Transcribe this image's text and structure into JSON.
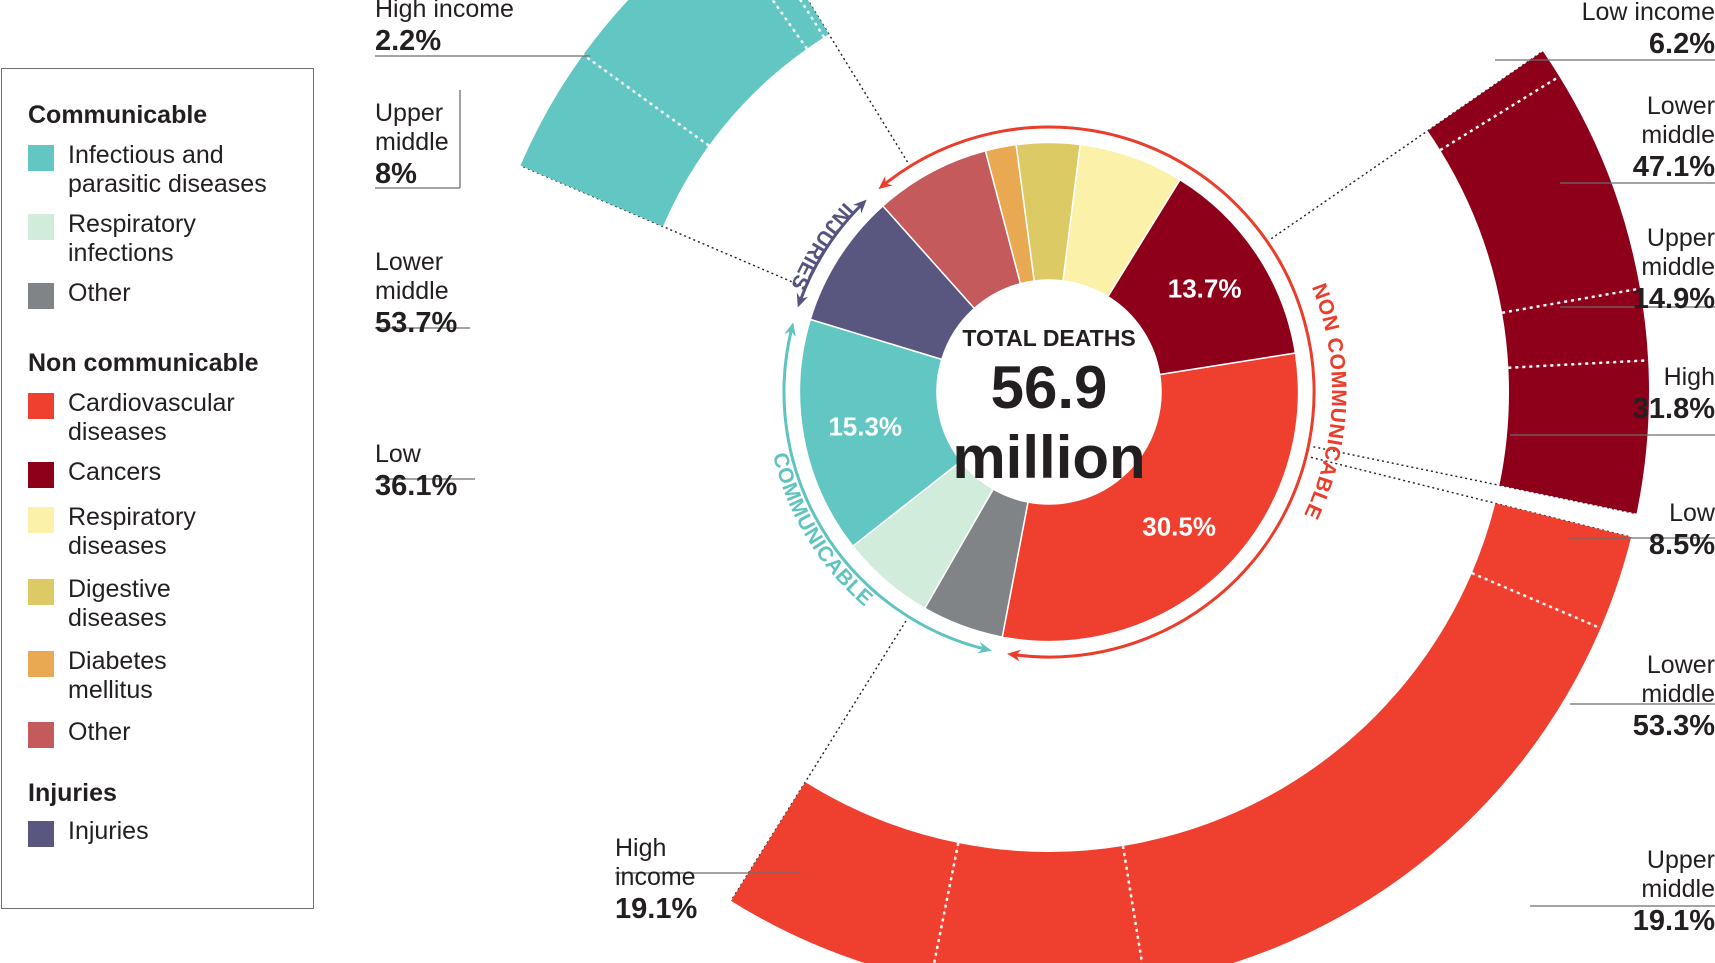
{
  "colors": {
    "infectious": "#62c6c3",
    "respiratory_infections": "#d2ecdc",
    "communicable_other": "#808486",
    "cardiovascular": "#ef402f",
    "cancers": "#8e001a",
    "respiratory_diseases": "#fcf1a8",
    "digestive": "#dccb64",
    "diabetes": "#e9a852",
    "noncommunicable_other": "#c45a5b",
    "injuries": "#595780",
    "communicable_arc": "#5ec3c1",
    "noncommunicable_arc": "#ea3d2b",
    "injuries_arc": "#555380"
  },
  "legend": {
    "communicable": {
      "heading": "Communicable",
      "items": [
        {
          "label": "Infectious and parasitic diseases",
          "color_key": "infectious"
        },
        {
          "label": "Respiratory infections",
          "color_key": "respiratory_infections"
        },
        {
          "label": "Other",
          "color_key": "communicable_other"
        }
      ]
    },
    "noncommunicable": {
      "heading": "Non communicable",
      "items": [
        {
          "label": "Cardiovascular diseases",
          "color_key": "cardiovascular"
        },
        {
          "label": "Cancers",
          "color_key": "cancers"
        },
        {
          "label": "Respiratory diseases",
          "color_key": "respiratory_diseases"
        },
        {
          "label": "Digestive diseases",
          "color_key": "digestive"
        },
        {
          "label": "Diabetes mellitus",
          "color_key": "diabetes"
        },
        {
          "label": "Other",
          "color_key": "noncommunicable_other"
        }
      ]
    },
    "injuries": {
      "heading": "Injuries",
      "items": [
        {
          "label": "Injuries",
          "color_key": "injuries"
        }
      ]
    }
  },
  "center": {
    "title": "TOTAL DEATHS",
    "value": "56.9",
    "unit": "million"
  },
  "arc_labels": {
    "communicable": "COMMUNICABLE",
    "noncommunicable": "NON COMMUNICABLE",
    "injuries": "INJURIES"
  },
  "chart_data": {
    "type": "pie",
    "title": "TOTAL DEATHS 56.9 million",
    "total_deaths_millions": 56.9,
    "inner_donut": {
      "unit": "percent of total deaths",
      "slices": [
        {
          "key": "infectious",
          "name": "Infectious and parasitic diseases",
          "group": "Communicable",
          "value": 15.3,
          "label": "15.3%"
        },
        {
          "key": "respiratory_infections",
          "name": "Respiratory infections",
          "group": "Communicable",
          "value": 6.1
        },
        {
          "key": "communicable_other",
          "name": "Other",
          "group": "Communicable",
          "value": 5.3
        },
        {
          "key": "cardiovascular",
          "name": "Cardiovascular diseases",
          "group": "Non communicable",
          "value": 30.5,
          "label": "30.5%"
        },
        {
          "key": "cancers",
          "name": "Cancers",
          "group": "Non communicable",
          "value": 13.7,
          "label": "13.7%"
        },
        {
          "key": "respiratory_diseases",
          "name": "Respiratory diseases",
          "group": "Non communicable",
          "value": 6.8
        },
        {
          "key": "digestive",
          "name": "Digestive diseases",
          "group": "Non communicable",
          "value": 4.1
        },
        {
          "key": "diabetes",
          "name": "Diabetes mellitus",
          "group": "Non communicable",
          "value": 2.0
        },
        {
          "key": "noncommunicable_other",
          "name": "Other",
          "group": "Non communicable",
          "value": 7.5
        },
        {
          "key": "injuries",
          "name": "Injuries",
          "group": "Injuries",
          "value": 8.7
        }
      ]
    },
    "breakdowns": [
      {
        "name": "Infectious and parasitic diseases by income group",
        "color_key": "infectious",
        "parts": [
          {
            "line1": "High income",
            "line2": "",
            "value": 2.2,
            "label": "2.2%"
          },
          {
            "line1": "Upper",
            "line2": "middle",
            "value": 8,
            "label": "8%"
          },
          {
            "line1": "Lower",
            "line2": "middle",
            "value": 53.7,
            "label": "53.7%"
          },
          {
            "line1": "Low",
            "line2": "",
            "value": 36.1,
            "label": "36.1%"
          }
        ]
      },
      {
        "name": "Cancers by income group",
        "color_key": "cancers",
        "parts": [
          {
            "line1": "Low income",
            "line2": "",
            "value": 6.2,
            "label": "6.2%"
          },
          {
            "line1": "Lower",
            "line2": "middle",
            "value": 47.1,
            "label": "47.1%"
          },
          {
            "line1": "Upper",
            "line2": "middle",
            "value": 14.9,
            "label": "14.9%"
          },
          {
            "line1": "High",
            "line2": "",
            "value": 31.8,
            "label": "31.8%"
          }
        ]
      },
      {
        "name": "Cardiovascular diseases by income group",
        "color_key": "cardiovascular",
        "parts": [
          {
            "line1": "Low",
            "line2": "",
            "value": 8.5,
            "label": "8.5%"
          },
          {
            "line1": "Lower",
            "line2": "middle",
            "value": 53.3,
            "label": "53.3%"
          },
          {
            "line1": "Upper",
            "line2": "middle",
            "value": 19.1,
            "label": "19.1%"
          },
          {
            "line1": "High",
            "line2": "income",
            "value": 19.1,
            "label": "19.1%"
          }
        ]
      }
    ]
  }
}
